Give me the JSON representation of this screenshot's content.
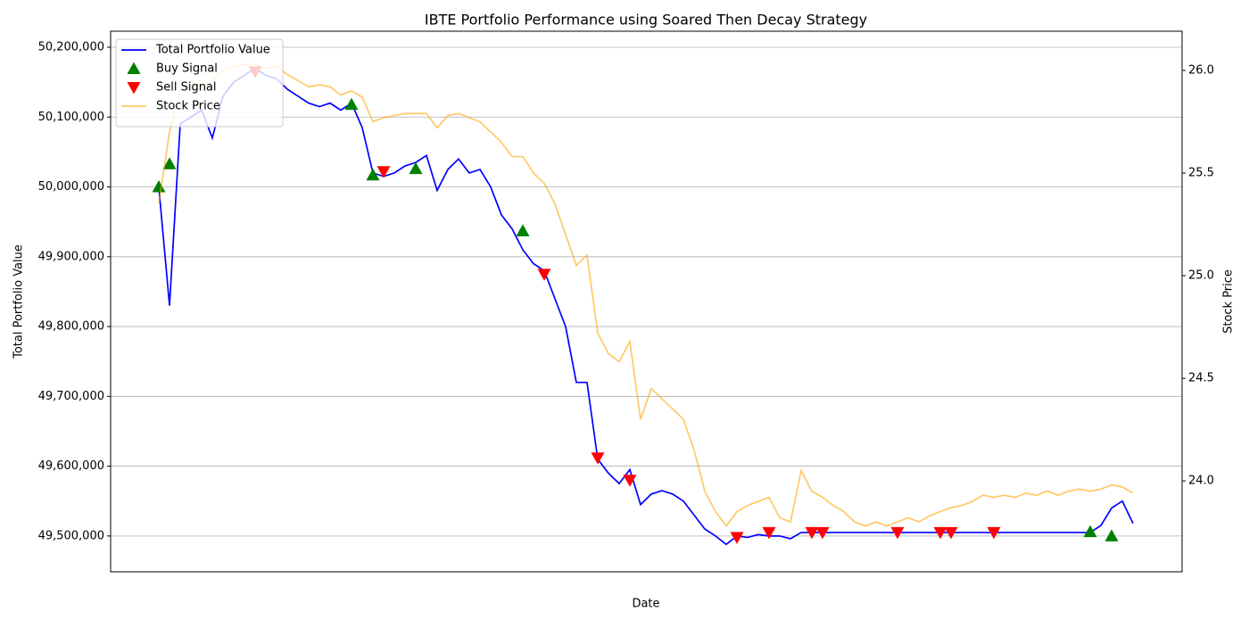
{
  "chart_data": {
    "type": "line",
    "title": "IBTE Portfolio Performance using Soared Then Decay Strategy",
    "xlabel": "Date",
    "ylabel": "Total Portfolio Value",
    "y2label": "Stock Price",
    "categories": [
      null,
      null,
      null,
      null,
      null,
      null,
      null,
      null,
      null,
      null,
      null,
      null,
      null,
      null,
      null,
      null,
      null,
      null,
      null,
      null,
      null,
      null,
      null,
      null,
      null,
      null,
      null,
      null,
      null,
      null,
      null,
      null,
      null,
      null,
      null,
      null,
      null,
      null,
      null,
      null,
      null,
      null,
      null,
      null,
      null,
      null,
      null,
      null,
      null,
      null,
      null,
      null,
      null,
      null,
      null,
      null,
      null,
      null,
      null,
      null,
      null,
      null,
      null,
      null,
      null,
      null,
      null,
      null,
      null,
      null,
      null,
      null,
      null,
      null,
      null,
      null,
      null,
      null,
      null,
      null,
      null,
      null,
      null,
      null,
      null,
      null,
      null,
      null,
      null,
      null,
      null,
      null
    ],
    "ylim": [
      49448700,
      50223000
    ],
    "yticks": [
      {
        "value": 49500000,
        "label": "49,500,000"
      },
      {
        "value": 49600000,
        "label": "49,600,000"
      },
      {
        "value": 49700000,
        "label": "49,700,000"
      },
      {
        "value": 49800000,
        "label": "49,800,000"
      },
      {
        "value": 49900000,
        "label": "49,900,000"
      },
      {
        "value": 50000000,
        "label": "50,000,000"
      },
      {
        "value": 50100000,
        "label": "50,100,000"
      },
      {
        "value": 50200000,
        "label": "50,200,000"
      }
    ],
    "y2lim": [
      23.557,
      26.191
    ],
    "y2ticks": [
      {
        "value": 24,
        "label": "24.0"
      },
      {
        "value": 24.5,
        "label": "24.5"
      },
      {
        "value": 25,
        "label": "25.0"
      },
      {
        "value": 25.5,
        "label": "25.5"
      },
      {
        "value": 26,
        "label": "26.0"
      }
    ],
    "grid": true,
    "legend": "upper left",
    "series": [
      {
        "name": "Total Portfolio Value",
        "color": "#0000ff",
        "values": [
          50000000,
          49830000,
          50090000,
          50100000,
          50110000,
          50070000,
          50130000,
          50150000,
          50160000,
          50170000,
          50160000,
          50155000,
          50140000,
          50130000,
          50120000,
          50115000,
          50120000,
          50110000,
          50120000,
          50085000,
          50020000,
          50015000,
          50020000,
          50030000,
          50035000,
          50045000,
          49995000,
          50025000,
          50040000,
          50020000,
          50025000,
          50000000,
          49960000,
          49940000,
          49910000,
          49890000,
          49880000,
          49840000,
          49800000,
          49720000,
          49720000,
          49610000,
          49590000,
          49575000,
          49595000,
          49545000,
          49560000,
          49565000,
          49560000,
          49550000,
          49530000,
          49510000,
          49500000,
          49488000,
          49500000,
          49498000,
          49502000,
          49500000,
          49500000,
          49496000,
          49505000,
          49505000,
          49505000,
          49505000,
          49505000,
          49505000,
          49505000,
          49505000,
          49505000,
          49505000,
          49505000,
          49505000,
          49505000,
          49505000,
          49505000,
          49505000,
          49505000,
          49505000,
          49505000,
          49505000,
          49505000,
          49505000,
          49505000,
          49505000,
          49505000,
          49505000,
          49505000,
          49505000,
          49515000,
          49540000,
          49550000,
          49518000
        ]
      },
      {
        "name": "Buy Signal",
        "color": "#008000",
        "marker": "^",
        "values": [
          50000000,
          50033000,
          null,
          null,
          null,
          null,
          null,
          null,
          null,
          null,
          null,
          null,
          null,
          null,
          null,
          null,
          null,
          null,
          50118000,
          null,
          50017000,
          null,
          null,
          null,
          50026000,
          null,
          null,
          null,
          null,
          null,
          null,
          null,
          null,
          null,
          49937000,
          null,
          null,
          null,
          null,
          null,
          null,
          null,
          null,
          null,
          null,
          null,
          null,
          null,
          null,
          null,
          null,
          null,
          null,
          null,
          null,
          null,
          null,
          null,
          null,
          null,
          null,
          null,
          null,
          null,
          null,
          null,
          null,
          null,
          null,
          null,
          null,
          null,
          null,
          null,
          null,
          null,
          null,
          null,
          null,
          null,
          null,
          null,
          null,
          null,
          null,
          null,
          null,
          49506000,
          null,
          49500000,
          null,
          null
        ]
      },
      {
        "name": "Sell Signal",
        "color": "#ff0000",
        "marker": "v",
        "values": [
          null,
          null,
          null,
          null,
          null,
          null,
          null,
          null,
          null,
          50165000,
          null,
          null,
          null,
          null,
          null,
          null,
          null,
          null,
          null,
          null,
          null,
          50022000,
          null,
          null,
          null,
          null,
          null,
          null,
          null,
          null,
          null,
          null,
          null,
          null,
          null,
          null,
          49875000,
          null,
          null,
          null,
          null,
          49612000,
          null,
          null,
          49580000,
          null,
          null,
          null,
          null,
          null,
          null,
          null,
          null,
          null,
          49498000,
          null,
          null,
          49505000,
          null,
          null,
          null,
          49505000,
          49505000,
          null,
          null,
          null,
          null,
          null,
          null,
          49505000,
          null,
          null,
          null,
          49505000,
          49505000,
          null,
          null,
          null,
          49505000,
          null,
          null,
          null,
          null,
          null,
          null,
          null,
          null,
          null,
          null,
          null,
          null,
          null
        ]
      },
      {
        "name": "Stock Price",
        "color": "#ffa500",
        "axis": "y2",
        "values": [
          25.35,
          25.7,
          25.9,
          25.95,
          25.9,
          25.95,
          26.0,
          26.02,
          26.03,
          26.03,
          26.01,
          26.02,
          25.98,
          25.95,
          25.92,
          25.93,
          25.92,
          25.88,
          25.9,
          25.87,
          25.75,
          25.77,
          25.78,
          25.79,
          25.79,
          25.79,
          25.72,
          25.78,
          25.79,
          25.77,
          25.75,
          25.7,
          25.65,
          25.58,
          25.58,
          25.5,
          25.45,
          25.35,
          25.2,
          25.05,
          25.1,
          24.72,
          24.62,
          24.58,
          24.68,
          24.3,
          24.45,
          24.4,
          24.35,
          24.3,
          24.15,
          23.95,
          23.85,
          23.78,
          23.85,
          23.88,
          23.9,
          23.92,
          23.82,
          23.8,
          24.05,
          23.95,
          23.92,
          23.88,
          23.85,
          23.8,
          23.78,
          23.8,
          23.78,
          23.8,
          23.82,
          23.8,
          23.83,
          23.85,
          23.87,
          23.88,
          23.9,
          23.93,
          23.92,
          23.93,
          23.92,
          23.94,
          23.93,
          23.95,
          23.93,
          23.95,
          23.96,
          23.95,
          23.96,
          23.98,
          23.97,
          23.94
        ]
      }
    ]
  }
}
